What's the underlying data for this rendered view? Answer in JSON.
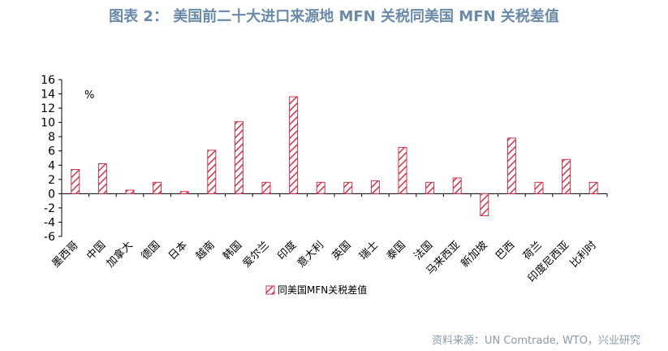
{
  "title": "图表 2：  美国前二十大进口来源地 MFN 关税同美国 MFN 关税差值",
  "source": "资料来源：UN Comtrade, WTO，兴业研究",
  "colors": {
    "bar_stroke": "#c9354b",
    "bar_hatch": "#c9354b",
    "title": "#6a8aa8",
    "axis": "#000000"
  },
  "chart_data": {
    "type": "bar",
    "ylabel": "%",
    "ylim": [
      -6,
      16
    ],
    "yticks": [
      -6,
      -4,
      -2,
      0,
      2,
      4,
      6,
      8,
      10,
      12,
      14,
      16
    ],
    "categories": [
      "墨西哥",
      "中国",
      "加拿大",
      "德国",
      "日本",
      "越南",
      "韩国",
      "爱尔兰",
      "印度",
      "意大利",
      "英国",
      "瑞士",
      "泰国",
      "法国",
      "马来西亚",
      "新加坡",
      "巴西",
      "荷兰",
      "印度尼西亚",
      "比利时"
    ],
    "series": [
      {
        "name": "同美国MFN关税差值",
        "values": [
          3.4,
          4.2,
          0.5,
          1.6,
          0.3,
          6.1,
          10.1,
          1.6,
          13.6,
          1.6,
          1.6,
          1.8,
          6.5,
          1.6,
          2.2,
          -3.1,
          7.8,
          1.6,
          4.8,
          1.6
        ]
      }
    ],
    "legend": "bottom-center"
  }
}
